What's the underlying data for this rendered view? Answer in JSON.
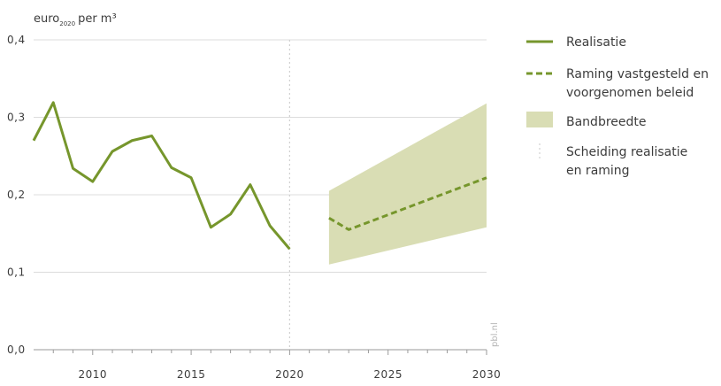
{
  "chart_data": {
    "type": "line",
    "ylabel": "euro",
    "ylabel_subscript": "2020",
    "ylabel_suffix": "per m³",
    "ylim": [
      0,
      0.4
    ],
    "xlim": [
      2007,
      2030
    ],
    "yticks": [
      {
        "value": 0.0,
        "label": "0,0"
      },
      {
        "value": 0.1,
        "label": "0,1"
      },
      {
        "value": 0.2,
        "label": "0,2"
      },
      {
        "value": 0.3,
        "label": "0,3"
      },
      {
        "value": 0.4,
        "label": "0,4"
      }
    ],
    "xticks": [
      {
        "value": 2010,
        "label": "2010"
      },
      {
        "value": 2015,
        "label": "2015"
      },
      {
        "value": 2020,
        "label": "2020"
      },
      {
        "value": 2025,
        "label": "2025"
      },
      {
        "value": 2030,
        "label": "2030"
      }
    ],
    "grid": true,
    "series": [
      {
        "name": "Realisatie",
        "style": "solid",
        "color": "#76962c",
        "x": [
          2007,
          2008,
          2009,
          2010,
          2011,
          2012,
          2013,
          2014,
          2015,
          2016,
          2017,
          2018,
          2019,
          2020
        ],
        "y": [
          0.27,
          0.319,
          0.234,
          0.217,
          0.256,
          0.27,
          0.276,
          0.235,
          0.222,
          0.158,
          0.175,
          0.213,
          0.16,
          0.13
        ]
      },
      {
        "name": "Raming vastgesteld en voorgenomen beleid",
        "style": "dashed",
        "color": "#76962c",
        "x": [
          2022,
          2023,
          2030
        ],
        "y": [
          0.17,
          0.155,
          0.222
        ]
      }
    ],
    "band": {
      "name": "Bandbreedte",
      "color": "#d9ddb4",
      "x": [
        2022,
        2030
      ],
      "upper": [
        0.205,
        0.318
      ],
      "lower": [
        0.11,
        0.158
      ]
    },
    "separator": {
      "name": "Scheiding realisatie en raming",
      "x": 2020,
      "color": "#d0d0d0"
    },
    "legend_position": "right",
    "watermark": "pbl.nl"
  },
  "legend": {
    "items": [
      {
        "key": "realisatie",
        "lines": [
          "Realisatie"
        ]
      },
      {
        "key": "raming",
        "lines": [
          "Raming vastgesteld en",
          "voorgenomen beleid"
        ]
      },
      {
        "key": "band",
        "lines": [
          "Bandbreedte"
        ]
      },
      {
        "key": "separator",
        "lines": [
          "Scheiding realisatie",
          "en raming"
        ]
      }
    ]
  }
}
